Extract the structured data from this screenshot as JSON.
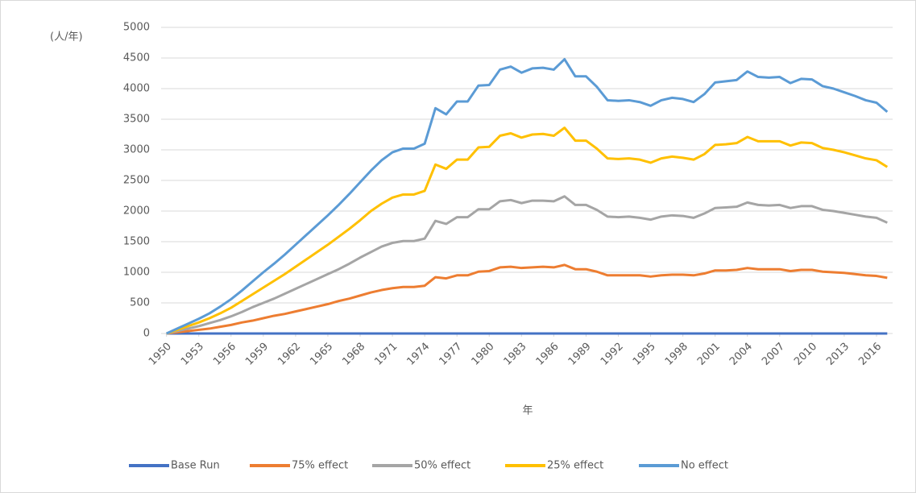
{
  "chart_data": {
    "type": "line",
    "y_axis_label": "(人/年)",
    "x_axis_label": "年",
    "x": [
      1950,
      1951,
      1952,
      1953,
      1954,
      1955,
      1956,
      1957,
      1958,
      1959,
      1960,
      1961,
      1962,
      1963,
      1964,
      1965,
      1966,
      1967,
      1968,
      1969,
      1970,
      1971,
      1972,
      1973,
      1974,
      1975,
      1976,
      1977,
      1978,
      1979,
      1980,
      1981,
      1982,
      1983,
      1984,
      1985,
      1986,
      1987,
      1988,
      1989,
      1990,
      1991,
      1992,
      1993,
      1994,
      1995,
      1996,
      1997,
      1998,
      1999,
      2000,
      2001,
      2002,
      2003,
      2004,
      2005,
      2006,
      2007,
      2008,
      2009,
      2010,
      2011,
      2012,
      2013,
      2014,
      2015,
      2016,
      2017
    ],
    "xlim": [
      1949.5,
      2017.5
    ],
    "xticks": [
      1950,
      1953,
      1956,
      1959,
      1962,
      1965,
      1968,
      1971,
      1974,
      1977,
      1980,
      1983,
      1986,
      1989,
      1992,
      1995,
      1998,
      2001,
      2004,
      2007,
      2010,
      2013,
      2016
    ],
    "ylim": [
      0,
      5000
    ],
    "yticks": [
      0,
      500,
      1000,
      1500,
      2000,
      2500,
      3000,
      3500,
      4000,
      4500,
      5000
    ],
    "grid": true,
    "legend": "bottom",
    "series": [
      {
        "name": "Base Run",
        "color": "#4472c4",
        "values": [
          0,
          0,
          0,
          0,
          0,
          0,
          0,
          0,
          0,
          0,
          0,
          0,
          0,
          0,
          0,
          0,
          0,
          0,
          0,
          0,
          0,
          0,
          0,
          0,
          0,
          0,
          0,
          0,
          0,
          0,
          0,
          0,
          0,
          0,
          0,
          0,
          0,
          0,
          0,
          0,
          0,
          0,
          0,
          0,
          0,
          0,
          0,
          0,
          0,
          0,
          0,
          0,
          0,
          0,
          0,
          0,
          0,
          0,
          0,
          0,
          0,
          0,
          0,
          0,
          0,
          0,
          0,
          0
        ]
      },
      {
        "name": "75% effect",
        "color": "#ed7d31",
        "values": [
          0,
          20,
          40,
          60,
          80,
          110,
          140,
          180,
          210,
          250,
          290,
          320,
          360,
          400,
          440,
          480,
          530,
          570,
          620,
          670,
          710,
          740,
          760,
          760,
          780,
          920,
          900,
          950,
          950,
          1010,
          1020,
          1080,
          1090,
          1070,
          1080,
          1090,
          1080,
          1120,
          1050,
          1050,
          1010,
          950,
          950,
          950,
          950,
          930,
          950,
          960,
          960,
          950,
          980,
          1030,
          1030,
          1040,
          1070,
          1050,
          1050,
          1050,
          1020,
          1040,
          1040,
          1010,
          1000,
          990,
          970,
          950,
          940,
          910
        ]
      },
      {
        "name": "50% effect",
        "color": "#a5a5a5",
        "values": [
          0,
          40,
          80,
          120,
          170,
          220,
          280,
          350,
          430,
          500,
          570,
          650,
          730,
          810,
          890,
          970,
          1050,
          1140,
          1240,
          1330,
          1420,
          1480,
          1510,
          1510,
          1550,
          1840,
          1790,
          1900,
          1900,
          2030,
          2030,
          2160,
          2180,
          2130,
          2170,
          2170,
          2160,
          2240,
          2100,
          2100,
          2020,
          1910,
          1900,
          1910,
          1890,
          1860,
          1910,
          1930,
          1920,
          1890,
          1960,
          2050,
          2060,
          2070,
          2140,
          2100,
          2090,
          2100,
          2050,
          2080,
          2080,
          2020,
          2000,
          1970,
          1940,
          1910,
          1890,
          1810
        ]
      },
      {
        "name": "25% effect",
        "color": "#ffc000",
        "values": [
          0,
          60,
          120,
          180,
          250,
          330,
          420,
          530,
          640,
          750,
          860,
          970,
          1090,
          1210,
          1330,
          1450,
          1580,
          1710,
          1850,
          2000,
          2120,
          2220,
          2270,
          2270,
          2330,
          2760,
          2690,
          2840,
          2840,
          3040,
          3050,
          3230,
          3270,
          3200,
          3250,
          3260,
          3230,
          3360,
          3150,
          3150,
          3020,
          2860,
          2850,
          2860,
          2840,
          2790,
          2860,
          2890,
          2870,
          2840,
          2930,
          3080,
          3090,
          3110,
          3210,
          3140,
          3140,
          3140,
          3070,
          3120,
          3110,
          3030,
          3000,
          2960,
          2910,
          2860,
          2830,
          2720
        ]
      },
      {
        "name": "No effect",
        "color": "#5b9bd5",
        "values": [
          0,
          80,
          160,
          240,
          330,
          440,
          560,
          700,
          850,
          1000,
          1140,
          1290,
          1450,
          1610,
          1770,
          1930,
          2100,
          2280,
          2470,
          2660,
          2830,
          2960,
          3020,
          3020,
          3100,
          3680,
          3580,
          3790,
          3790,
          4050,
          4060,
          4310,
          4360,
          4260,
          4330,
          4340,
          4310,
          4480,
          4200,
          4200,
          4030,
          3810,
          3800,
          3810,
          3780,
          3720,
          3810,
          3850,
          3830,
          3780,
          3910,
          4100,
          4120,
          4140,
          4280,
          4190,
          4180,
          4190,
          4090,
          4160,
          4150,
          4040,
          4000,
          3940,
          3880,
          3810,
          3770,
          3620
        ]
      }
    ]
  }
}
